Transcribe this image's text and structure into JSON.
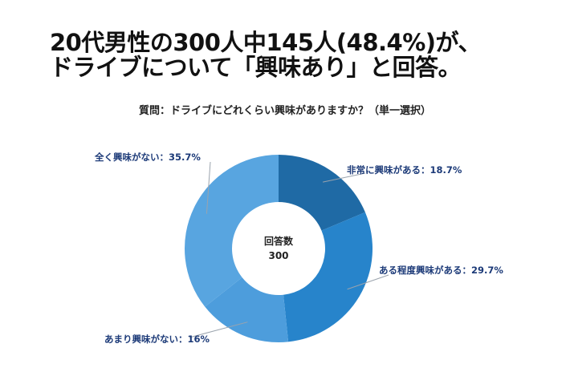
{
  "title_lines": [
    "20代男性の300人中145人(48.4%)が、",
    "ドライブについて「興味あり」と回答。"
  ],
  "chart_data": {
    "type": "pie",
    "variant": "donut",
    "title": "質問：ドライブにどれくらい興味がありますか？（単一選択）",
    "center_label": "回答数",
    "center_value": "300",
    "unit": "%",
    "slices": [
      {
        "label": "非常に興味がある：18.7%",
        "name": "非常に興味がある",
        "value": 18.7,
        "color": "#1f6aa5"
      },
      {
        "label": "ある程度興味がある：29.7%",
        "name": "ある程度興味がある",
        "value": 29.7,
        "color": "#2784cb"
      },
      {
        "label": "あまり興味がない：16%",
        "name": "あまり興味がない",
        "value": 16,
        "color": "#4d9ddc"
      },
      {
        "label": "全く興味がない：35.7%",
        "name": "全く興味がない",
        "value": 35.7,
        "color": "#58a5e0"
      }
    ],
    "start": "top",
    "direction": "clockwise",
    "label_color": "#1c3a78"
  }
}
